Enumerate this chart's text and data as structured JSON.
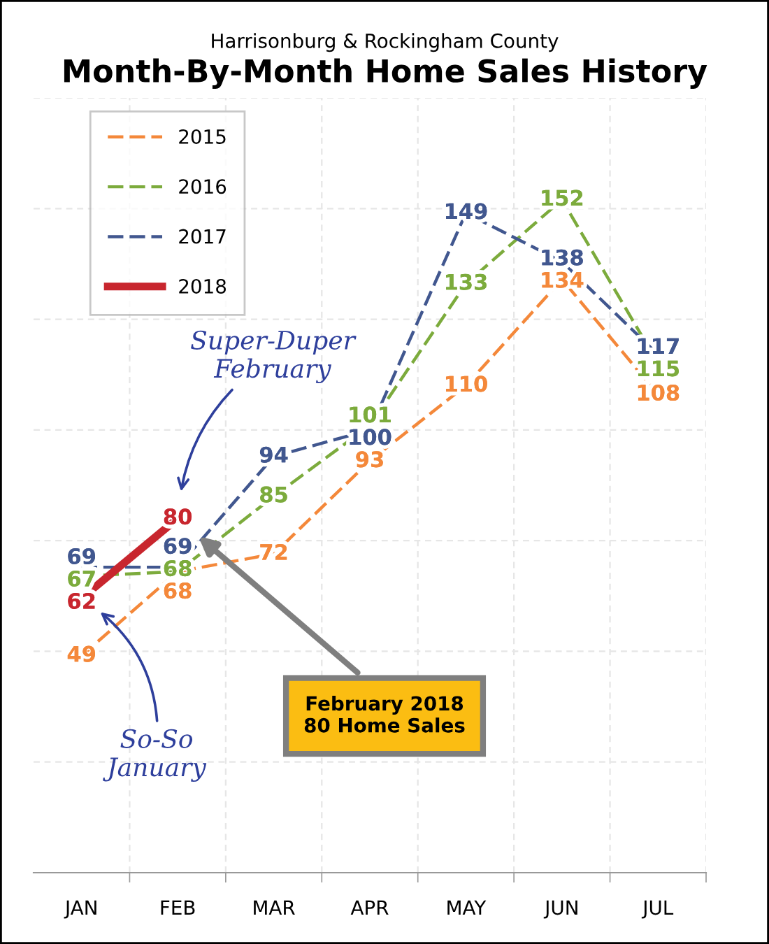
{
  "chart_data": {
    "type": "line",
    "subtitle": "Harrisonburg & Rockingham County",
    "title": "Month-By-Month Home Sales History",
    "categories": [
      "JAN",
      "FEB",
      "MAR",
      "APR",
      "MAY",
      "JUN",
      "JUL"
    ],
    "series": [
      {
        "name": "2015",
        "color": "#f4883a",
        "line_style": "dashed",
        "values": [
          49,
          68,
          72,
          93,
          110,
          134,
          108
        ]
      },
      {
        "name": "2016",
        "color": "#7cab3c",
        "line_style": "dashed",
        "values": [
          67,
          68,
          85,
          101,
          133,
          152,
          115
        ]
      },
      {
        "name": "2017",
        "color": "#41578f",
        "line_style": "dashed",
        "values": [
          69,
          69,
          94,
          100,
          149,
          138,
          117
        ]
      },
      {
        "name": "2018",
        "color": "#c8262e",
        "line_style": "solid",
        "values": [
          62,
          80,
          null,
          null,
          null,
          null,
          null
        ]
      }
    ],
    "ylim": [
      0,
      175
    ],
    "yticks": [
      {
        "value": 25,
        "label": null
      },
      {
        "value": 50,
        "label": null
      },
      {
        "value": 75,
        "label": null
      },
      {
        "value": 100,
        "label": null
      },
      {
        "value": 125,
        "label": null
      },
      {
        "value": 150,
        "label": null
      },
      {
        "value": 175,
        "label": null
      }
    ],
    "tick_labels": "x",
    "grid": true,
    "legend": "top left",
    "data_labels": true,
    "annotations": [
      "Super-Duper\nFebruary",
      "So-So\nJanuary",
      "February 2018\n80 Home Sales"
    ]
  }
}
